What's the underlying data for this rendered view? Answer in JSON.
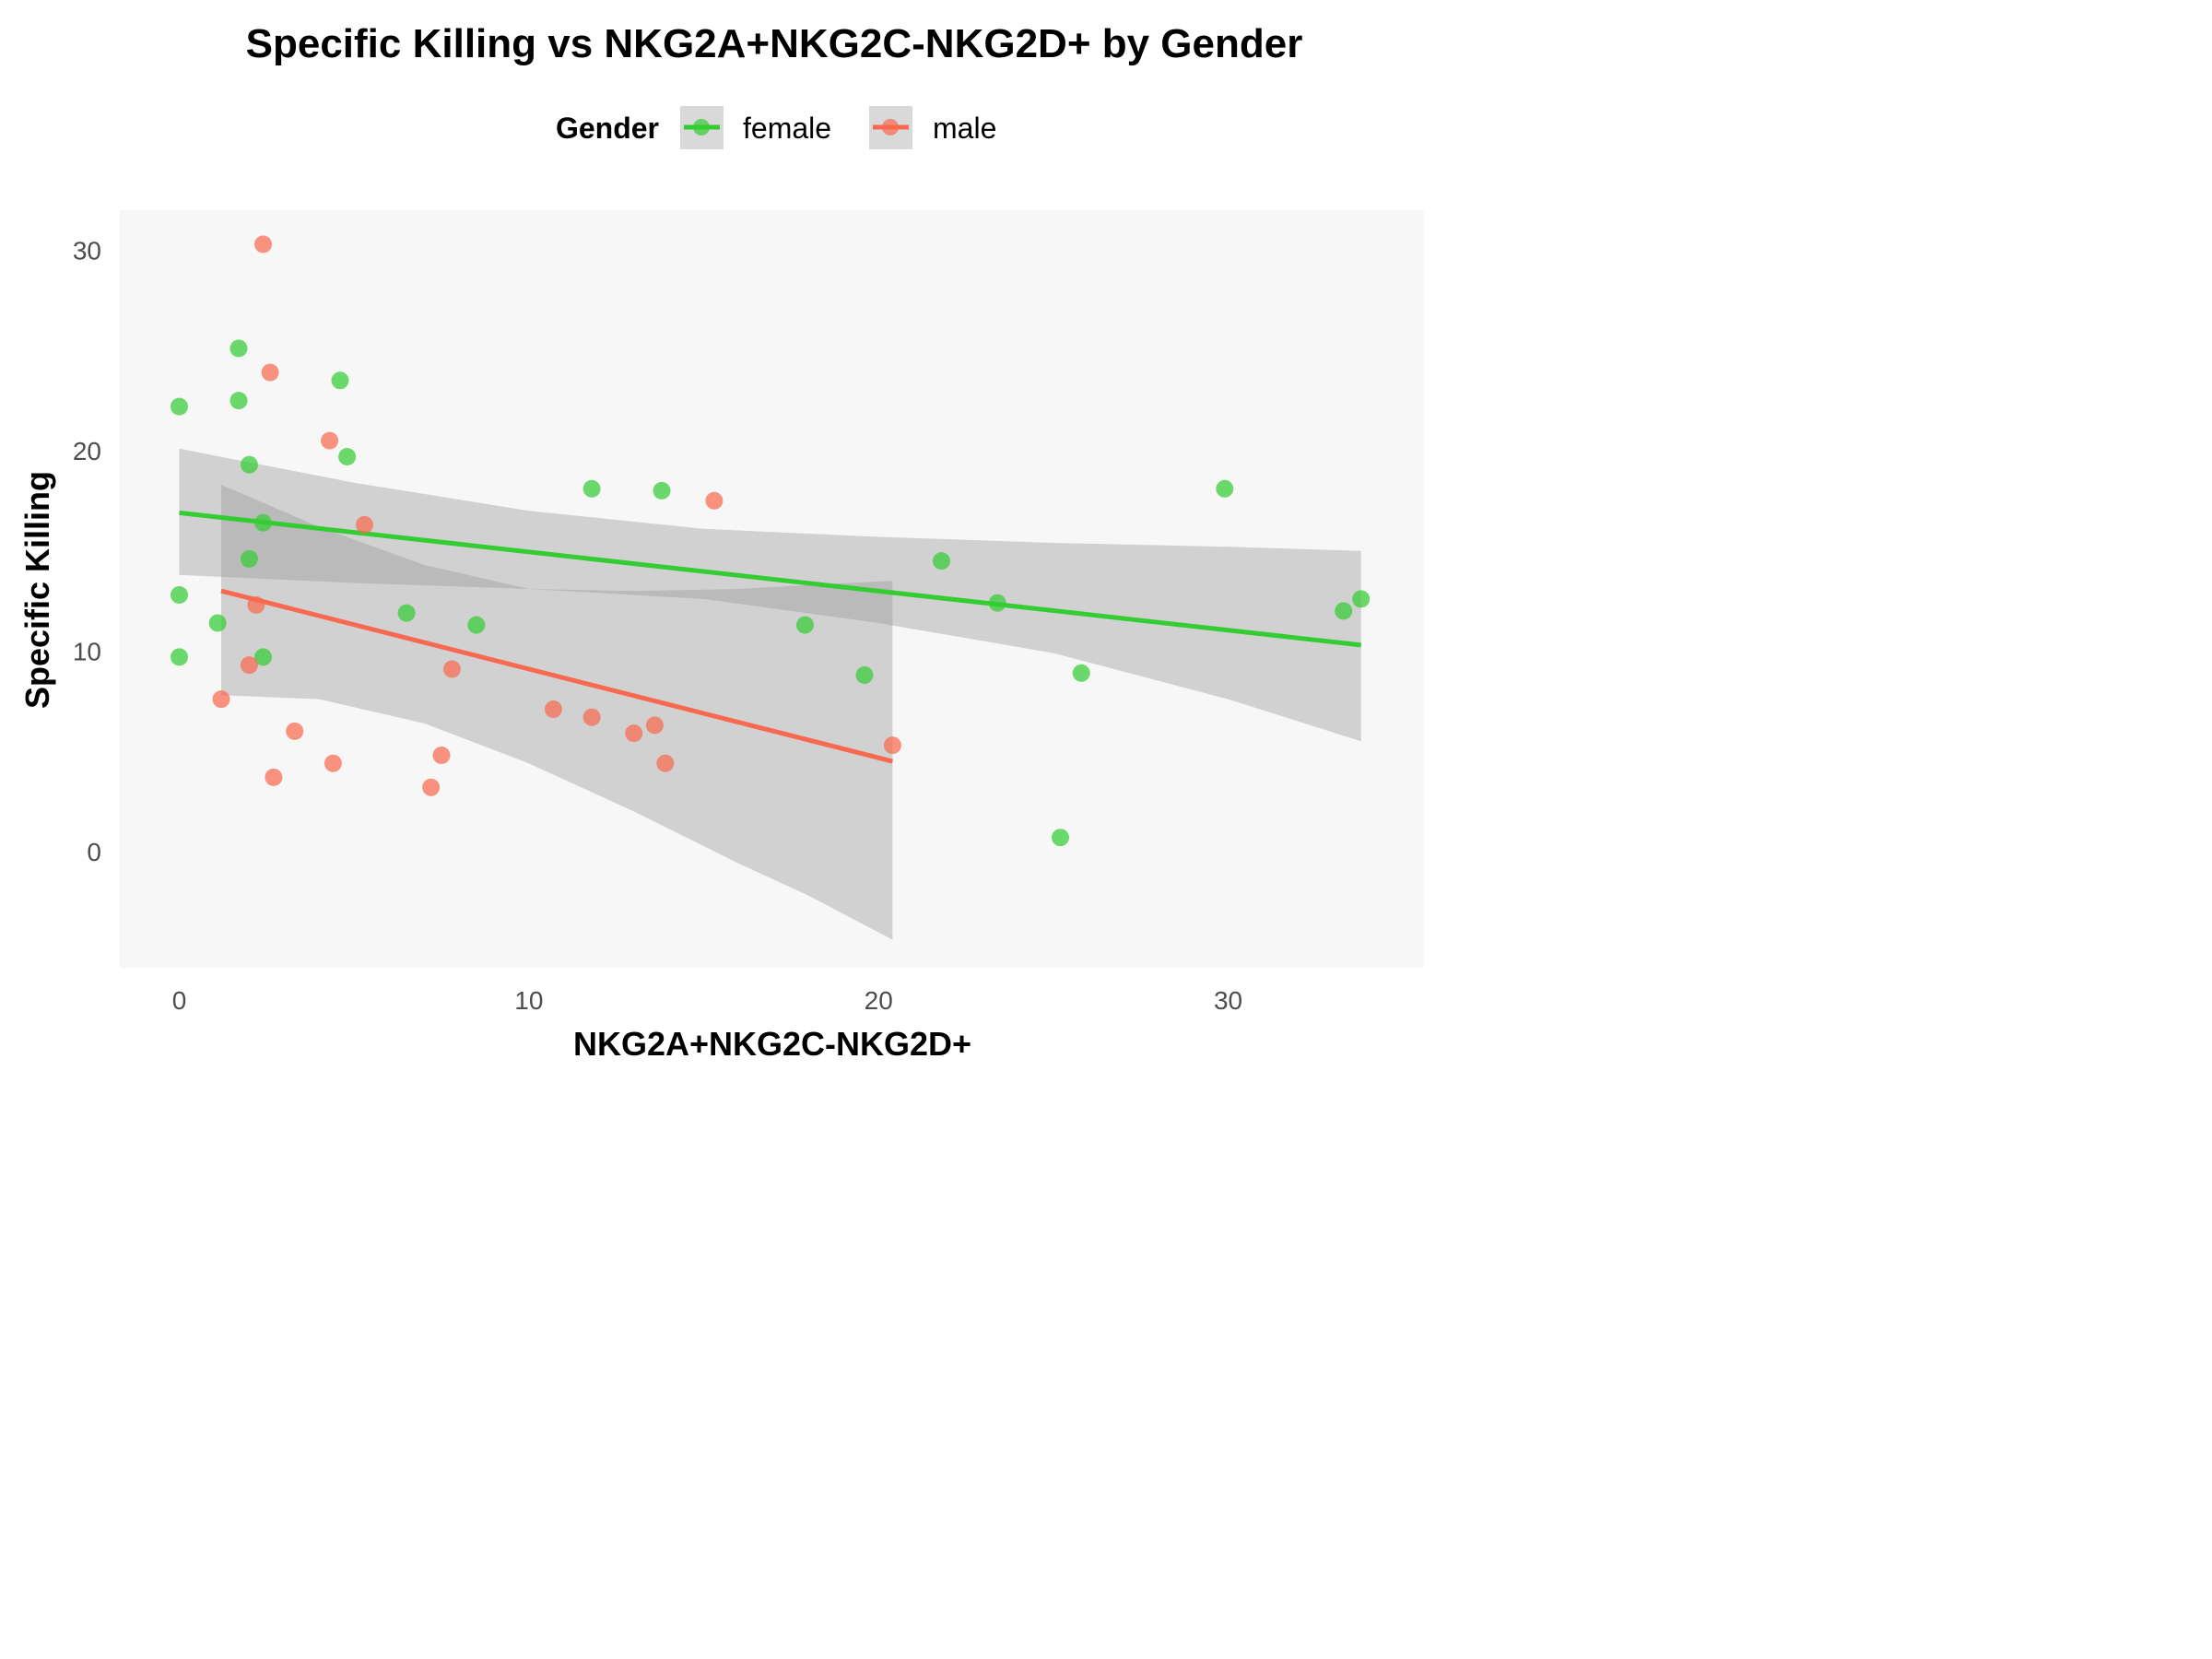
{
  "chart_data": {
    "type": "scatter",
    "title": "Specific Killing vs NKG2A+NKG2C-NKG2D+ by Gender",
    "xlabel": "NKG2A+NKG2C-NKG2D+",
    "ylabel": "Specific Killing",
    "xlim": [
      -1.7,
      35.6
    ],
    "ylim": [
      -5.8,
      32.0
    ],
    "x_ticks": [
      0,
      10,
      20,
      30
    ],
    "y_ticks": [
      0,
      10,
      20,
      30
    ],
    "x_tick_labels": [
      "0",
      "10",
      "20",
      "30"
    ],
    "y_tick_labels": [
      "0",
      "10",
      "20",
      "30"
    ],
    "grid": false,
    "legend": {
      "title": "Gender",
      "placement": "top"
    },
    "series": [
      {
        "name": "female",
        "color": "#33cc33",
        "points": [
          {
            "x": 0.0,
            "y": 22.2
          },
          {
            "x": 0.0,
            "y": 12.8
          },
          {
            "x": 0.0,
            "y": 9.7
          },
          {
            "x": 1.1,
            "y": 11.4
          },
          {
            "x": 1.7,
            "y": 25.1
          },
          {
            "x": 1.7,
            "y": 22.5
          },
          {
            "x": 2.0,
            "y": 19.3
          },
          {
            "x": 2.0,
            "y": 14.6
          },
          {
            "x": 2.4,
            "y": 16.4
          },
          {
            "x": 2.4,
            "y": 9.7
          },
          {
            "x": 4.6,
            "y": 23.5
          },
          {
            "x": 4.8,
            "y": 19.7
          },
          {
            "x": 6.5,
            "y": 11.9
          },
          {
            "x": 8.5,
            "y": 11.3
          },
          {
            "x": 11.8,
            "y": 18.1
          },
          {
            "x": 13.8,
            "y": 18.0
          },
          {
            "x": 17.9,
            "y": 11.3
          },
          {
            "x": 19.6,
            "y": 8.8
          },
          {
            "x": 21.8,
            "y": 14.5
          },
          {
            "x": 23.4,
            "y": 12.4
          },
          {
            "x": 25.2,
            "y": 0.7
          },
          {
            "x": 25.8,
            "y": 8.9
          },
          {
            "x": 29.9,
            "y": 18.1
          },
          {
            "x": 33.3,
            "y": 12.0
          },
          {
            "x": 33.8,
            "y": 12.6
          }
        ],
        "fit": {
          "x": [
            0.0,
            33.8
          ],
          "y": [
            16.9,
            10.3
          ],
          "ci_lower_x": [
            0.0,
            5.0,
            10.0,
            15.0,
            20.0,
            25.0,
            30.0,
            33.8
          ],
          "ci_lower_y": [
            13.8,
            13.4,
            13.1,
            12.6,
            11.4,
            9.9,
            7.6,
            5.5
          ],
          "ci_upper_x": [
            0.0,
            5.0,
            10.0,
            15.0,
            20.0,
            25.0,
            30.0,
            33.8
          ],
          "ci_upper_y": [
            20.1,
            18.4,
            17.0,
            16.1,
            15.7,
            15.4,
            15.2,
            15.0
          ]
        }
      },
      {
        "name": "male",
        "color": "#f8694f",
        "points": [
          {
            "x": 1.2,
            "y": 7.6
          },
          {
            "x": 2.0,
            "y": 9.3
          },
          {
            "x": 2.2,
            "y": 12.3
          },
          {
            "x": 2.4,
            "y": 30.3
          },
          {
            "x": 2.6,
            "y": 23.9
          },
          {
            "x": 2.7,
            "y": 3.7
          },
          {
            "x": 3.3,
            "y": 6.0
          },
          {
            "x": 4.3,
            "y": 20.5
          },
          {
            "x": 4.4,
            "y": 4.4
          },
          {
            "x": 5.3,
            "y": 16.3
          },
          {
            "x": 7.2,
            "y": 3.2
          },
          {
            "x": 7.5,
            "y": 4.8
          },
          {
            "x": 7.8,
            "y": 9.1
          },
          {
            "x": 10.7,
            "y": 7.1
          },
          {
            "x": 11.8,
            "y": 6.7
          },
          {
            "x": 13.0,
            "y": 5.9
          },
          {
            "x": 13.6,
            "y": 6.3
          },
          {
            "x": 13.9,
            "y": 4.4
          },
          {
            "x": 15.3,
            "y": 17.5
          },
          {
            "x": 20.4,
            "y": 5.3
          }
        ],
        "fit": {
          "x": [
            1.2,
            20.4
          ],
          "y": [
            13.0,
            4.5
          ],
          "ci_lower_x": [
            1.2,
            4.0,
            7.0,
            10.0,
            13.0,
            16.0,
            18.0,
            20.4
          ],
          "ci_lower_y": [
            7.8,
            7.6,
            6.4,
            4.4,
            2.0,
            -0.6,
            -2.2,
            -4.4
          ],
          "ci_upper_x": [
            1.2,
            4.0,
            7.0,
            10.0,
            13.0,
            16.0,
            18.0,
            20.4
          ],
          "ci_upper_y": [
            18.3,
            16.2,
            14.3,
            13.1,
            13.0,
            13.1,
            13.3,
            13.5
          ]
        }
      }
    ]
  }
}
